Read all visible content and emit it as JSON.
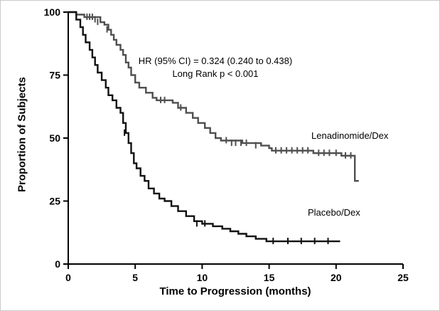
{
  "chart_data": {
    "type": "line",
    "subtype": "kaplan-meier-step",
    "title": "",
    "xlabel": "Time to Progression (months)",
    "ylabel": "Proportion of Subjects",
    "xlim": [
      0,
      25
    ],
    "ylim": [
      0,
      100
    ],
    "xticks": [
      0,
      5,
      10,
      15,
      20,
      25
    ],
    "yticks": [
      0,
      25,
      50,
      75,
      100
    ],
    "grid": false,
    "legend_position": "inline-labels",
    "annotation": {
      "line1": "HR (95% CI) = 0.324 (0.240 to 0.438)",
      "line2": "Long Rank p < 0.001"
    },
    "axis_color": "#000000",
    "series": [
      {
        "name": "Lenadinomide/Dex",
        "color": "#4f4f4f",
        "end_x": 21.7,
        "steps": [
          [
            0,
            100
          ],
          [
            0.6,
            99
          ],
          [
            1.2,
            98
          ],
          [
            2.4,
            96
          ],
          [
            2.7,
            95
          ],
          [
            3.0,
            93
          ],
          [
            3.2,
            91
          ],
          [
            3.4,
            89
          ],
          [
            3.6,
            87
          ],
          [
            3.9,
            85
          ],
          [
            4.1,
            83
          ],
          [
            4.3,
            80
          ],
          [
            4.5,
            78
          ],
          [
            4.7,
            75
          ],
          [
            5.0,
            72
          ],
          [
            5.3,
            70
          ],
          [
            5.8,
            68
          ],
          [
            6.3,
            66
          ],
          [
            6.6,
            65
          ],
          [
            7.8,
            64
          ],
          [
            8.2,
            62
          ],
          [
            8.8,
            60
          ],
          [
            9.3,
            58
          ],
          [
            9.7,
            56
          ],
          [
            10.2,
            54
          ],
          [
            10.6,
            52
          ],
          [
            11.0,
            50
          ],
          [
            11.4,
            49
          ],
          [
            13.0,
            48
          ],
          [
            14.4,
            47
          ],
          [
            15.0,
            46
          ],
          [
            15.2,
            45
          ],
          [
            18.3,
            44
          ],
          [
            20.4,
            43
          ],
          [
            21.4,
            33
          ]
        ],
        "censor_ticks": [
          [
            1.4,
            98
          ],
          [
            1.6,
            98
          ],
          [
            1.8,
            98
          ],
          [
            2.0,
            97
          ],
          [
            2.2,
            96
          ],
          [
            2.9,
            93
          ],
          [
            6.9,
            65
          ],
          [
            7.2,
            65
          ],
          [
            8.4,
            62
          ],
          [
            11.8,
            49
          ],
          [
            12.2,
            48
          ],
          [
            12.5,
            48
          ],
          [
            12.9,
            48
          ],
          [
            13.3,
            48
          ],
          [
            14.0,
            47
          ],
          [
            15.5,
            45
          ],
          [
            15.9,
            45
          ],
          [
            16.3,
            45
          ],
          [
            16.7,
            45
          ],
          [
            17.1,
            45
          ],
          [
            17.5,
            45
          ],
          [
            17.9,
            45
          ],
          [
            18.7,
            44
          ],
          [
            19.1,
            44
          ],
          [
            19.5,
            44
          ],
          [
            20.0,
            44
          ],
          [
            20.7,
            43
          ],
          [
            21.1,
            43
          ]
        ]
      },
      {
        "name": "Placebo/Dex",
        "color": "#111111",
        "end_x": 20.3,
        "steps": [
          [
            0,
            100
          ],
          [
            0.6,
            97
          ],
          [
            0.9,
            94
          ],
          [
            1.1,
            91
          ],
          [
            1.3,
            88
          ],
          [
            1.6,
            85
          ],
          [
            1.8,
            82
          ],
          [
            2.0,
            79
          ],
          [
            2.2,
            76
          ],
          [
            2.5,
            73
          ],
          [
            2.8,
            70
          ],
          [
            3.0,
            67
          ],
          [
            3.3,
            65
          ],
          [
            3.6,
            62
          ],
          [
            3.9,
            60
          ],
          [
            4.1,
            56
          ],
          [
            4.3,
            52
          ],
          [
            4.5,
            48
          ],
          [
            4.7,
            44
          ],
          [
            4.9,
            40
          ],
          [
            5.1,
            38
          ],
          [
            5.4,
            35
          ],
          [
            5.7,
            33
          ],
          [
            6.0,
            30
          ],
          [
            6.4,
            28
          ],
          [
            6.8,
            26
          ],
          [
            7.2,
            25
          ],
          [
            7.7,
            23
          ],
          [
            8.2,
            21
          ],
          [
            8.8,
            19
          ],
          [
            9.4,
            17
          ],
          [
            10.0,
            16
          ],
          [
            10.8,
            15
          ],
          [
            11.5,
            14
          ],
          [
            12.1,
            13
          ],
          [
            12.7,
            12
          ],
          [
            13.3,
            11
          ],
          [
            14.0,
            10
          ],
          [
            14.8,
            9
          ]
        ],
        "censor_ticks": [
          [
            4.2,
            52
          ],
          [
            9.6,
            16
          ],
          [
            10.2,
            16
          ],
          [
            15.3,
            9
          ],
          [
            16.4,
            9
          ],
          [
            17.4,
            9
          ],
          [
            18.4,
            9
          ],
          [
            19.4,
            9
          ]
        ]
      }
    ]
  }
}
